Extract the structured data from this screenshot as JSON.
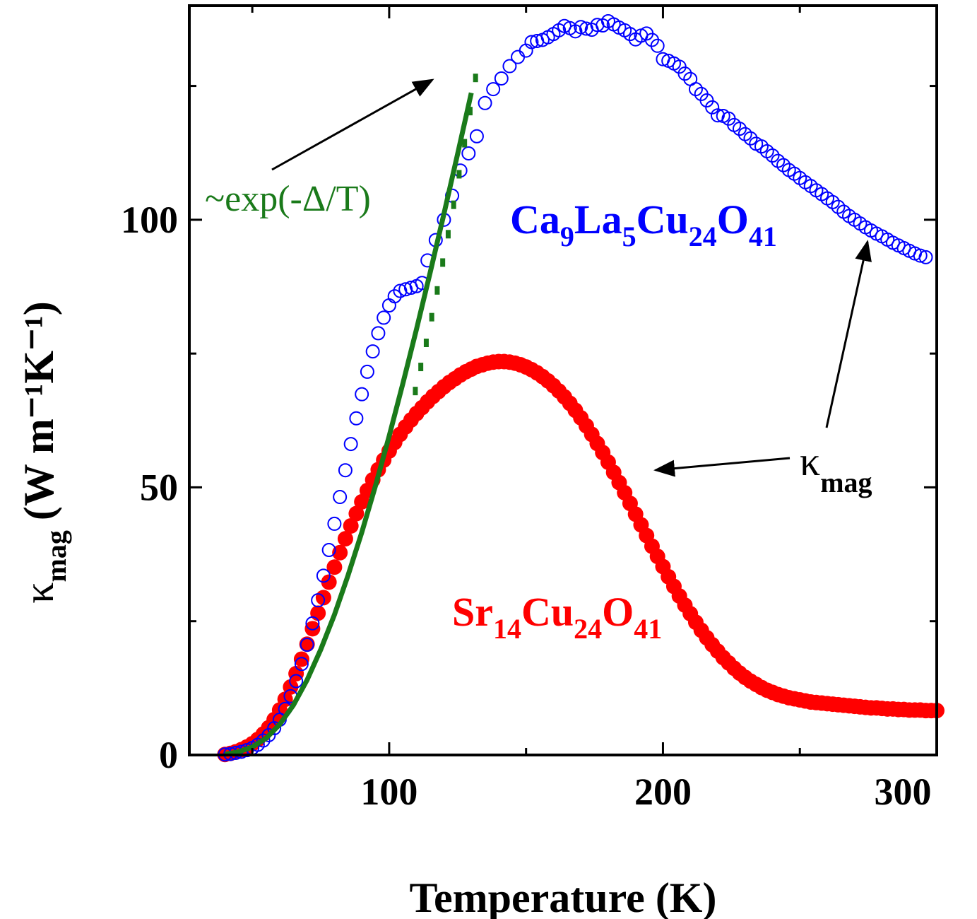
{
  "chart_data": {
    "type": "scatter",
    "xlabel": "Temperature (K)",
    "ylabel": {
      "main": "κ",
      "sub": "mag",
      "unit": "(W m⁻¹K⁻¹)"
    },
    "xlim": [
      27,
      300
    ],
    "ylim": [
      0,
      140
    ],
    "xticks": [
      100,
      200,
      300
    ],
    "yticks": [
      0,
      50,
      100
    ],
    "grid": false,
    "colors": {
      "ca": "#0000ff",
      "sr": "#ff0000",
      "fit": "#1a7a1a",
      "axes": "#000000"
    },
    "series": [
      {
        "name": "Ca9La5Cu24O41",
        "marker": "open-circle",
        "x": [
          40,
          42,
          44,
          46,
          48,
          50,
          52,
          54,
          56,
          58,
          60,
          62,
          64,
          66,
          68,
          70,
          72,
          74,
          76,
          78,
          80,
          82,
          84,
          86,
          88,
          90,
          92,
          94,
          96,
          98,
          100,
          102,
          104,
          106,
          108,
          110,
          112,
          114,
          117,
          120,
          123,
          126,
          129,
          132,
          135,
          138,
          141,
          144,
          147,
          150,
          152,
          154,
          156,
          158,
          160,
          162,
          164,
          166,
          168,
          170,
          172,
          174,
          176,
          178,
          180,
          182,
          184,
          186,
          188,
          190,
          192,
          194,
          196,
          198,
          200,
          202,
          204,
          206,
          208,
          210,
          212,
          214,
          216,
          218,
          220,
          222,
          224,
          226,
          228,
          230,
          232,
          234,
          236,
          238,
          240,
          242,
          244,
          246,
          248,
          250,
          252,
          254,
          256,
          258,
          260,
          262,
          264,
          266,
          268,
          270,
          272,
          274,
          276,
          278,
          280,
          282,
          284,
          286,
          288,
          290,
          292,
          294,
          296
        ],
        "y": [
          0.1,
          0.2,
          0.4,
          0.6,
          0.9,
          1.3,
          1.9,
          2.7,
          3.7,
          5.0,
          6.6,
          8.6,
          11.0,
          13.8,
          17.0,
          20.6,
          24.6,
          28.9,
          33.5,
          38.3,
          43.2,
          48.2,
          53.2,
          58.1,
          62.9,
          67.4,
          71.6,
          75.4,
          78.8,
          81.7,
          84.0,
          85.7,
          86.7,
          87.0,
          87.3,
          87.6,
          88.2,
          92.4,
          96.2,
          100.0,
          104.5,
          109.2,
          112.4,
          115.6,
          121.8,
          124.4,
          126.4,
          128.7,
          130.4,
          131.6,
          133.2,
          133.4,
          133.6,
          134.1,
          134.7,
          135.4,
          136.2,
          135.8,
          135.2,
          136.0,
          135.7,
          135.5,
          136.4,
          136.3,
          137.1,
          136.5,
          135.9,
          135.4,
          134.7,
          133.7,
          134.4,
          134.8,
          133.6,
          132.5,
          130.0,
          129.7,
          129.2,
          128.6,
          127.3,
          126.3,
          124.4,
          123.5,
          122.3,
          121.0,
          119.5,
          119.4,
          118.9,
          117.7,
          117.0,
          116.0,
          115.2,
          114.2,
          113.7,
          112.8,
          112.0,
          111.0,
          110.2,
          109.3,
          108.6,
          107.8,
          107.0,
          106.3,
          105.5,
          104.8,
          104.0,
          103.3,
          102.4,
          101.5,
          100.7,
          100.0,
          99.3,
          98.6,
          98.0,
          97.4,
          96.9,
          96.3,
          95.7,
          95.2,
          94.7,
          94.2,
          93.7,
          93.3,
          93.0
        ]
      },
      {
        "name": "Sr14Cu24O41",
        "marker": "filled-circle",
        "x": [
          40,
          42,
          44,
          46,
          48,
          50,
          52,
          54,
          56,
          58,
          60,
          62,
          64,
          66,
          68,
          70,
          72,
          74,
          76,
          78,
          80,
          82,
          84,
          86,
          88,
          90,
          92,
          94,
          96,
          98,
          100,
          102,
          104,
          106,
          108,
          110,
          112,
          114,
          116,
          118,
          120,
          122,
          124,
          126,
          128,
          130,
          132,
          134,
          136,
          138,
          140,
          142,
          144,
          146,
          148,
          150,
          152,
          154,
          156,
          158,
          160,
          162,
          164,
          166,
          168,
          170,
          172,
          174,
          176,
          178,
          180,
          182,
          184,
          186,
          188,
          190,
          192,
          194,
          196,
          198,
          200,
          202,
          204,
          206,
          208,
          210,
          212,
          214,
          216,
          218,
          220,
          222,
          224,
          226,
          228,
          230,
          232,
          234,
          236,
          238,
          240,
          242,
          244,
          246,
          248,
          250,
          252,
          254,
          256,
          258,
          260,
          262,
          264,
          266,
          268,
          270,
          272,
          274,
          276,
          278,
          280,
          282,
          284,
          286,
          288,
          290,
          292,
          294,
          296,
          298,
          300
        ],
        "y": [
          0.1,
          0.3,
          0.6,
          1.0,
          1.5,
          2.1,
          2.9,
          3.9,
          5.1,
          6.6,
          8.4,
          10.4,
          12.7,
          15.2,
          17.9,
          20.7,
          23.6,
          26.5,
          29.4,
          32.3,
          35.1,
          37.8,
          40.4,
          42.8,
          45.1,
          47.3,
          49.4,
          51.4,
          53.3,
          55.1,
          56.8,
          58.4,
          59.9,
          61.3,
          62.6,
          63.8,
          64.9,
          66.0,
          67.0,
          67.9,
          68.8,
          69.6,
          70.3,
          71.0,
          71.6,
          72.1,
          72.6,
          72.9,
          73.2,
          73.4,
          73.5,
          73.5,
          73.4,
          73.2,
          72.9,
          72.5,
          72.0,
          71.4,
          70.7,
          69.9,
          69.0,
          68.0,
          66.9,
          65.7,
          64.4,
          63.0,
          61.5,
          59.9,
          58.2,
          56.5,
          54.7,
          52.8,
          50.9,
          49.0,
          47.0,
          45.0,
          43.0,
          41.0,
          39.0,
          37.1,
          35.2,
          33.3,
          31.5,
          29.7,
          28.0,
          26.4,
          24.8,
          23.3,
          21.9,
          20.6,
          19.4,
          18.2,
          17.2,
          16.2,
          15.3,
          14.5,
          13.8,
          13.2,
          12.6,
          12.1,
          11.7,
          11.3,
          11.0,
          10.7,
          10.5,
          10.3,
          10.1,
          9.9,
          9.8,
          9.7,
          9.6,
          9.5,
          9.4,
          9.3,
          9.2,
          9.1,
          9.0,
          8.9,
          8.8,
          8.8,
          8.7,
          8.6,
          8.6,
          8.5,
          8.5,
          8.4,
          8.4,
          8.4,
          8.3,
          8.3,
          8.3
        ]
      },
      {
        "name": "~exp(-Δ/T)",
        "style": "solid",
        "x": [
          40,
          45,
          50,
          55,
          60,
          65,
          70,
          75,
          80,
          85,
          90,
          95,
          100,
          105,
          110,
          115,
          120,
          125,
          130
        ],
        "y": [
          0.1,
          0.6,
          1.5,
          3.1,
          5.7,
          9.3,
          14.0,
          19.7,
          26.2,
          33.6,
          41.6,
          50.3,
          59.6,
          69.4,
          79.6,
          90.2,
          101.1,
          112.3,
          123.7
        ]
      },
      {
        "name": "~exp(-Δ/T) dotted",
        "style": "dotted",
        "x": [
          104,
          106,
          108,
          110,
          112,
          114,
          116,
          118,
          120,
          122,
          124,
          126
        ],
        "y": [
          68.0,
          72.5,
          77.0,
          81.8,
          86.8,
          92.0,
          97.3,
          102.8,
          108.5,
          114.3,
          120.3,
          126.5
        ]
      }
    ],
    "annotations": {
      "ca_label": {
        "main": "Ca",
        "s1": "9",
        "m2": "La",
        "s2": "5",
        "m3": "Cu",
        "s3": "24",
        "m4": "O",
        "s4": "41"
      },
      "sr_label": {
        "main": "Sr",
        "s1": "14",
        "m2": "Cu",
        "s2": "24",
        "m3": "O",
        "s3": "41"
      },
      "fit_label": "~exp(-Δ/T)",
      "kmag_label": {
        "main": "κ",
        "sub": "mag"
      }
    }
  }
}
